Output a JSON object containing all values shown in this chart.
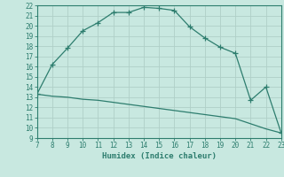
{
  "x": [
    7,
    8,
    9,
    10,
    11,
    12,
    13,
    14,
    15,
    16,
    17,
    18,
    19,
    20,
    21,
    22,
    23
  ],
  "y_upper": [
    13.3,
    16.2,
    17.8,
    19.5,
    20.3,
    21.3,
    21.3,
    21.8,
    21.7,
    21.5,
    19.9,
    18.8,
    17.9,
    17.3,
    12.7,
    14.0,
    9.5
  ],
  "y_lower": [
    13.3,
    13.1,
    13.0,
    12.8,
    12.7,
    12.5,
    12.3,
    12.1,
    11.9,
    11.7,
    11.5,
    11.3,
    11.1,
    10.9,
    10.4,
    9.9,
    9.5
  ],
  "line_color": "#2d7d6e",
  "bg_color": "#c8e8e0",
  "grid_major_color": "#b0cfc8",
  "grid_minor_color": "#c0ddd8",
  "xlabel": "Humidex (Indice chaleur)",
  "xlim": [
    7,
    23
  ],
  "ylim": [
    9,
    22
  ],
  "xticks": [
    7,
    8,
    9,
    10,
    11,
    12,
    13,
    14,
    15,
    16,
    17,
    18,
    19,
    20,
    21,
    22,
    23
  ],
  "yticks": [
    9,
    10,
    11,
    12,
    13,
    14,
    15,
    16,
    17,
    18,
    19,
    20,
    21,
    22
  ],
  "tick_color": "#2d7d6e",
  "label_color": "#2d7d6e",
  "font_family": "monospace"
}
